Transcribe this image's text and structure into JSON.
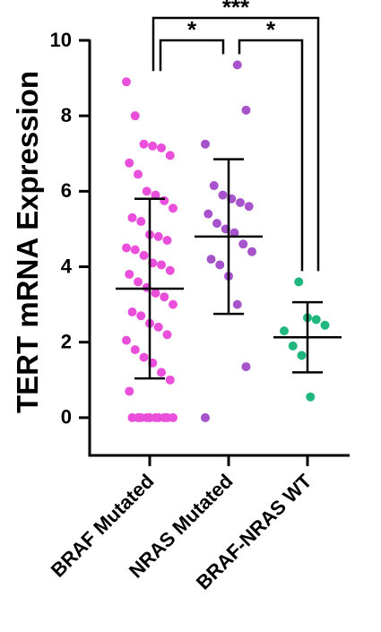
{
  "chart_data": {
    "type": "dot",
    "y_label": "TERT mRNA Expression",
    "categories": [
      "BRAF Mutated",
      "NRAS Mutated",
      "BRAF-NRAS WT"
    ],
    "colors": [
      "#e94fdb",
      "#a653cc",
      "#1fb77d"
    ],
    "points": [
      [
        8.9,
        8.0,
        7.25,
        7.2,
        7.15,
        6.95,
        6.75,
        6.45,
        6.0,
        5.9,
        5.75,
        5.55,
        5.3,
        5.2,
        4.85,
        4.8,
        4.7,
        4.5,
        4.45,
        4.3,
        4.1,
        4.05,
        3.9,
        3.8,
        3.6,
        3.45,
        3.3,
        3.2,
        3.0,
        2.8,
        2.7,
        2.5,
        2.4,
        2.2,
        2.05,
        1.8,
        1.6,
        1.45,
        1.2,
        1.0,
        0.7,
        0,
        0,
        0,
        0,
        0,
        0,
        0,
        0,
        0,
        0
      ],
      [
        9.35,
        8.15,
        7.25,
        6.15,
        5.9,
        5.8,
        5.7,
        5.6,
        5.4,
        5.15,
        5.0,
        4.9,
        4.6,
        4.4,
        4.2,
        4.05,
        3.75,
        3.0,
        1.35,
        0.0
      ],
      [
        3.6,
        2.65,
        2.6,
        2.45,
        2.3,
        1.9,
        1.65,
        0.55
      ]
    ],
    "means": [
      3.42,
      4.8,
      2.13
    ],
    "sds": [
      2.38,
      2.05,
      0.93
    ],
    "ylim": [
      -1,
      10
    ],
    "yticks": [
      0,
      2,
      4,
      6,
      8,
      10
    ],
    "significance": [
      {
        "pair": [
          0,
          1
        ],
        "label": "*"
      },
      {
        "pair": [
          1,
          2
        ],
        "label": "*"
      },
      {
        "pair": [
          0,
          2
        ],
        "label": "***"
      }
    ]
  }
}
